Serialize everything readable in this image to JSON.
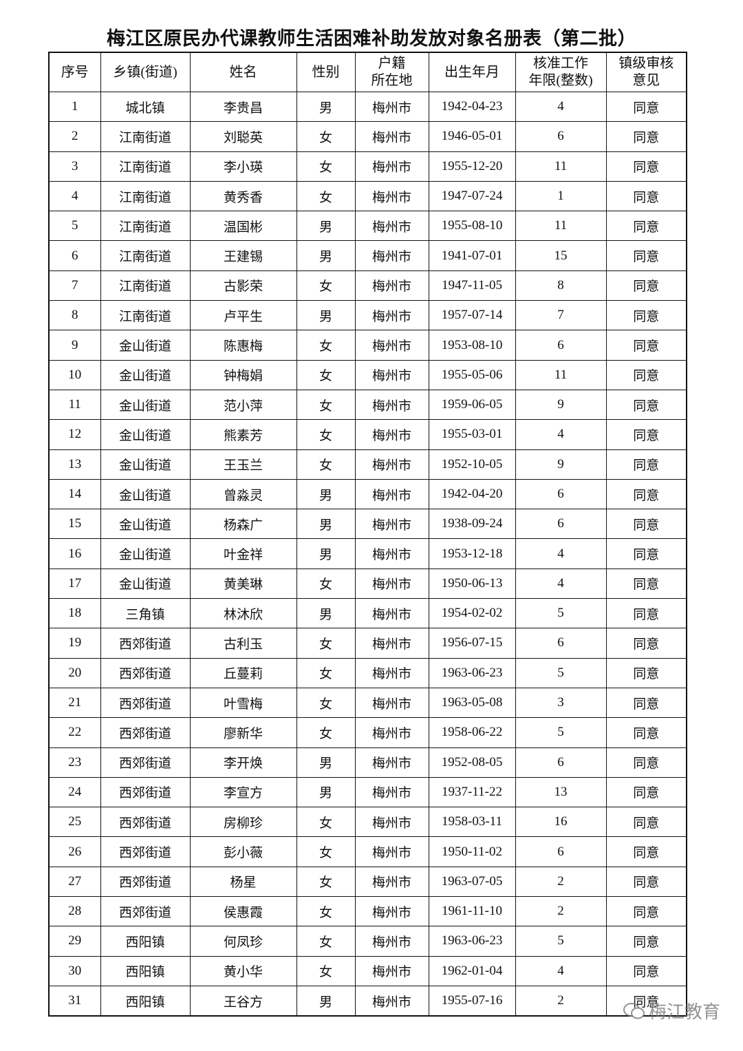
{
  "title": "梅江区原民办代课教师生活困难补助发放对象名册表（第二批）",
  "table": {
    "header": [
      "序号",
      "乡镇(街道)",
      "姓名",
      "性别",
      "户籍\n所在地",
      "出生年月",
      "核准工作\n年限(整数)",
      "镇级审核\n意见"
    ],
    "rows": [
      [
        "1",
        "城北镇",
        "李贵昌",
        "男",
        "梅州市",
        "1942-04-23",
        "4",
        "同意"
      ],
      [
        "2",
        "江南街道",
        "刘聪英",
        "女",
        "梅州市",
        "1946-05-01",
        "6",
        "同意"
      ],
      [
        "3",
        "江南街道",
        "李小瑛",
        "女",
        "梅州市",
        "1955-12-20",
        "11",
        "同意"
      ],
      [
        "4",
        "江南街道",
        "黄秀香",
        "女",
        "梅州市",
        "1947-07-24",
        "1",
        "同意"
      ],
      [
        "5",
        "江南街道",
        "温国彬",
        "男",
        "梅州市",
        "1955-08-10",
        "11",
        "同意"
      ],
      [
        "6",
        "江南街道",
        "王建锡",
        "男",
        "梅州市",
        "1941-07-01",
        "15",
        "同意"
      ],
      [
        "7",
        "江南街道",
        "古影荣",
        "女",
        "梅州市",
        "1947-11-05",
        "8",
        "同意"
      ],
      [
        "8",
        "江南街道",
        "卢平生",
        "男",
        "梅州市",
        "1957-07-14",
        "7",
        "同意"
      ],
      [
        "9",
        "金山街道",
        "陈惠梅",
        "女",
        "梅州市",
        "1953-08-10",
        "6",
        "同意"
      ],
      [
        "10",
        "金山街道",
        "钟梅娟",
        "女",
        "梅州市",
        "1955-05-06",
        "11",
        "同意"
      ],
      [
        "11",
        "金山街道",
        "范小萍",
        "女",
        "梅州市",
        "1959-06-05",
        "9",
        "同意"
      ],
      [
        "12",
        "金山街道",
        "熊素芳",
        "女",
        "梅州市",
        "1955-03-01",
        "4",
        "同意"
      ],
      [
        "13",
        "金山街道",
        "王玉兰",
        "女",
        "梅州市",
        "1952-10-05",
        "9",
        "同意"
      ],
      [
        "14",
        "金山街道",
        "曾淼灵",
        "男",
        "梅州市",
        "1942-04-20",
        "6",
        "同意"
      ],
      [
        "15",
        "金山街道",
        "杨森广",
        "男",
        "梅州市",
        "1938-09-24",
        "6",
        "同意"
      ],
      [
        "16",
        "金山街道",
        "叶金祥",
        "男",
        "梅州市",
        "1953-12-18",
        "4",
        "同意"
      ],
      [
        "17",
        "金山街道",
        "黄美琳",
        "女",
        "梅州市",
        "1950-06-13",
        "4",
        "同意"
      ],
      [
        "18",
        "三角镇",
        "林沐欣",
        "男",
        "梅州市",
        "1954-02-02",
        "5",
        "同意"
      ],
      [
        "19",
        "西郊街道",
        "古利玉",
        "女",
        "梅州市",
        "1956-07-15",
        "6",
        "同意"
      ],
      [
        "20",
        "西郊街道",
        "丘蔓莉",
        "女",
        "梅州市",
        "1963-06-23",
        "5",
        "同意"
      ],
      [
        "21",
        "西郊街道",
        "叶雪梅",
        "女",
        "梅州市",
        "1963-05-08",
        "3",
        "同意"
      ],
      [
        "22",
        "西郊街道",
        "廖新华",
        "女",
        "梅州市",
        "1958-06-22",
        "5",
        "同意"
      ],
      [
        "23",
        "西郊街道",
        "李开焕",
        "男",
        "梅州市",
        "1952-08-05",
        "6",
        "同意"
      ],
      [
        "24",
        "西郊街道",
        "李宣方",
        "男",
        "梅州市",
        "1937-11-22",
        "13",
        "同意"
      ],
      [
        "25",
        "西郊街道",
        "房柳珍",
        "女",
        "梅州市",
        "1958-03-11",
        "16",
        "同意"
      ],
      [
        "26",
        "西郊街道",
        "彭小薇",
        "女",
        "梅州市",
        "1950-11-02",
        "6",
        "同意"
      ],
      [
        "27",
        "西郊街道",
        "杨星",
        "女",
        "梅州市",
        "1963-07-05",
        "2",
        "同意"
      ],
      [
        "28",
        "西郊街道",
        "侯惠霞",
        "女",
        "梅州市",
        "1961-11-10",
        "2",
        "同意"
      ],
      [
        "29",
        "西阳镇",
        "何凤珍",
        "女",
        "梅州市",
        "1963-06-23",
        "5",
        "同意"
      ],
      [
        "30",
        "西阳镇",
        "黄小华",
        "女",
        "梅州市",
        "1962-01-04",
        "4",
        "同意"
      ],
      [
        "31",
        "西阳镇",
        "王谷方",
        "男",
        "梅州市",
        "1955-07-16",
        "2",
        "同意"
      ]
    ]
  },
  "watermark": "梅江教育"
}
